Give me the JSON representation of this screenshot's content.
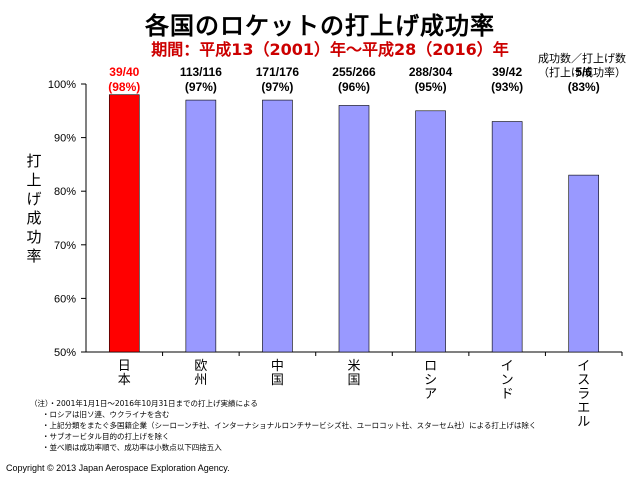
{
  "chart_data": {
    "type": "bar",
    "title": "各国のロケットの打上げ成功率",
    "subtitle": "期間：平成13（2001）年〜平成28（2016）年",
    "ylabel": "打上げ成功率",
    "legend_note": [
      "成功数／打上げ数",
      "（打上げ成功率）"
    ],
    "ylim": [
      50,
      100
    ],
    "yticks": [
      "100%",
      "90%",
      "80%",
      "70%",
      "60%",
      "50%"
    ],
    "ytick_values": [
      100,
      90,
      80,
      70,
      60,
      50
    ],
    "categories": [
      "日本",
      "欧州",
      "中国",
      "米国",
      "ロシア",
      "インド",
      "イスラエル"
    ],
    "values": [
      98,
      97,
      97,
      96,
      95,
      93,
      83
    ],
    "counts": [
      "39/40",
      "113/116",
      "171/176",
      "255/266",
      "288/304",
      "39/42",
      "5/6"
    ],
    "rates": [
      "(98%)",
      "(97%)",
      "(97%)",
      "(96%)",
      "(95%)",
      "(93%)",
      "(83%)"
    ],
    "highlight_index": 0,
    "colors": {
      "highlight": "#ff0000",
      "bar": "#9999ff",
      "highlight_text": "#ff0000",
      "subtitle": "#cc0000"
    },
    "grid": false
  },
  "notes": {
    "head": "（注）・2001年1月1日〜2016年10月31日までの打上げ実績による",
    "items": [
      "・ロシアは旧ソ連、ウクライナを含む",
      "・上記分類をまたぐ多国籍企業（シーローンチ社、インターナショナルロンチサービシズ社、ユーロコット社、スターセム社）による打上げは除く",
      "・サブオービタル目的の打上げを除く",
      "・並べ順は成功率順で、成功率は小数点以下四捨五入"
    ]
  },
  "copyright": "Copyright © 2013 Japan Aerospace Exploration Agency."
}
